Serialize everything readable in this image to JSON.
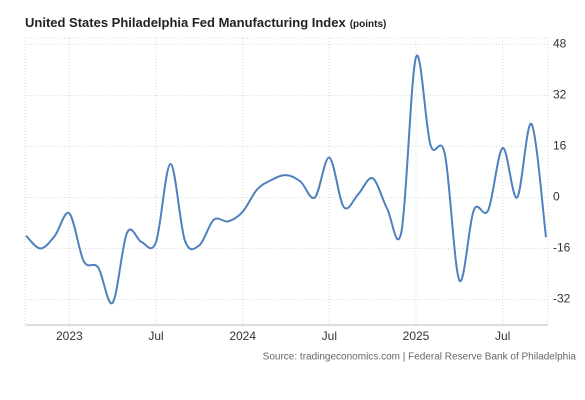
{
  "chart_data": {
    "type": "line",
    "title": "United States Philadelphia Fed Manufacturing Index",
    "subtitle": "(points)",
    "source": "Source: tradingeconomics.com | Federal Reserve Bank of Philadelphia",
    "categories": [
      null,
      null,
      null,
      "2023",
      null,
      null,
      null,
      null,
      null,
      "Jul",
      null,
      null,
      null,
      null,
      null,
      "2024",
      null,
      null,
      null,
      null,
      null,
      "Jul",
      null,
      null,
      null,
      null,
      null,
      "2025",
      null,
      null,
      null,
      null,
      null,
      "Jul",
      null,
      null,
      null
    ],
    "series": [
      {
        "name": "Philadelphia Fed Manufacturing Index",
        "color": "#4f81bd",
        "values": [
          -12,
          -16,
          -12,
          -5,
          -20,
          -22,
          -33,
          -11,
          -14,
          -14,
          10.5,
          -13.5,
          -15,
          -7,
          -7.5,
          -4.5,
          2.5,
          5.5,
          7,
          5,
          0,
          12.5,
          -3,
          1,
          6,
          -3.5,
          -10.5,
          44,
          16.5,
          13.5,
          -26,
          -4,
          -4,
          15.5,
          0,
          23,
          -12.5
        ]
      }
    ],
    "ylim": [
      -40,
      50
    ],
    "yticks": [
      48,
      32,
      16,
      0,
      -16,
      -32
    ],
    "grid": true
  }
}
